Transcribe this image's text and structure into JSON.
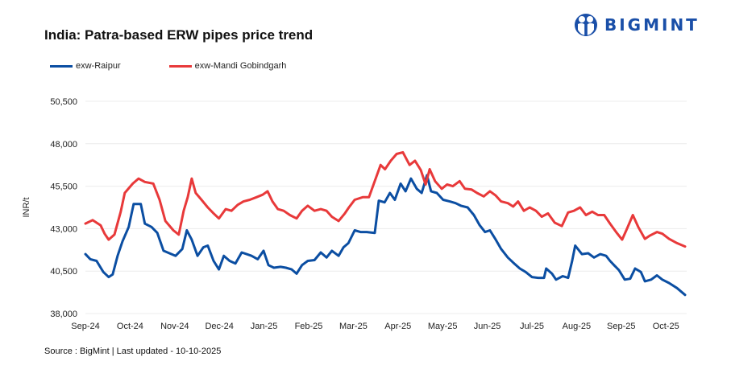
{
  "header": {
    "title": "India: Patra-based ERW pipes price trend",
    "brand": "BIGMINT",
    "brand_icon": "bigmint-logo-icon"
  },
  "footer": {
    "source": "Source : BigMint | Last updated - 10-10-2025"
  },
  "colors": {
    "raipur": "#0b4ea2",
    "mandi": "#e8393a",
    "brand": "#1a4fa8",
    "grid": "#ececec"
  },
  "chart_data": {
    "type": "line",
    "title": "India: Patra-based ERW pipes price trend",
    "xlabel": "",
    "ylabel": "INR/t",
    "ylim": [
      38000,
      50500
    ],
    "yticks": [
      38000,
      40500,
      43000,
      45500,
      48000,
      50500
    ],
    "ytick_labels": [
      "38,000",
      "40,500",
      "43,000",
      "45,500",
      "48,000",
      "50,500"
    ],
    "xlim_months": [
      0,
      13.45
    ],
    "xtick_labels": [
      "Sep-24",
      "Oct-24",
      "Nov-24",
      "Dec-24",
      "Jan-25",
      "Feb-25",
      "Mar-25",
      "Apr-25",
      "May-25",
      "Jun-25",
      "Jul-25",
      "Aug-25",
      "Sep-25",
      "Oct-25"
    ],
    "grid": true,
    "legend_position": "top-left",
    "x_unit": "months since start of Sep-24",
    "series": [
      {
        "name": "exw-Raipur",
        "color": "#0b4ea2",
        "points": [
          [
            0.0,
            41500
          ],
          [
            0.11,
            41200
          ],
          [
            0.25,
            41100
          ],
          [
            0.4,
            40450
          ],
          [
            0.52,
            40150
          ],
          [
            0.61,
            40300
          ],
          [
            0.72,
            41400
          ],
          [
            0.83,
            42250
          ],
          [
            0.97,
            43100
          ],
          [
            1.08,
            44450
          ],
          [
            1.24,
            44450
          ],
          [
            1.33,
            43300
          ],
          [
            1.48,
            43100
          ],
          [
            1.61,
            42750
          ],
          [
            1.75,
            41700
          ],
          [
            1.88,
            41550
          ],
          [
            2.02,
            41400
          ],
          [
            2.17,
            41800
          ],
          [
            2.27,
            42900
          ],
          [
            2.38,
            42350
          ],
          [
            2.51,
            41400
          ],
          [
            2.64,
            41900
          ],
          [
            2.74,
            42000
          ],
          [
            2.87,
            41100
          ],
          [
            2.99,
            40600
          ],
          [
            3.1,
            41400
          ],
          [
            3.23,
            41100
          ],
          [
            3.36,
            40950
          ],
          [
            3.5,
            41600
          ],
          [
            3.61,
            41500
          ],
          [
            3.72,
            41400
          ],
          [
            3.86,
            41200
          ],
          [
            3.99,
            41700
          ],
          [
            4.1,
            40850
          ],
          [
            4.22,
            40700
          ],
          [
            4.37,
            40750
          ],
          [
            4.49,
            40700
          ],
          [
            4.62,
            40600
          ],
          [
            4.73,
            40350
          ],
          [
            4.85,
            40850
          ],
          [
            4.98,
            41100
          ],
          [
            5.13,
            41150
          ],
          [
            5.27,
            41600
          ],
          [
            5.4,
            41300
          ],
          [
            5.52,
            41700
          ],
          [
            5.67,
            41400
          ],
          [
            5.78,
            41900
          ],
          [
            5.89,
            42150
          ],
          [
            6.03,
            42900
          ],
          [
            6.16,
            42800
          ],
          [
            6.3,
            42800
          ],
          [
            6.48,
            42750
          ],
          [
            6.57,
            44650
          ],
          [
            6.7,
            44550
          ],
          [
            6.82,
            45100
          ],
          [
            6.93,
            44700
          ],
          [
            7.06,
            45650
          ],
          [
            7.17,
            45200
          ],
          [
            7.29,
            45950
          ],
          [
            7.42,
            45350
          ],
          [
            7.53,
            45100
          ],
          [
            7.65,
            46150
          ],
          [
            7.74,
            45200
          ],
          [
            7.87,
            45100
          ],
          [
            8.01,
            44700
          ],
          [
            8.16,
            44600
          ],
          [
            8.29,
            44500
          ],
          [
            8.41,
            44350
          ],
          [
            8.56,
            44250
          ],
          [
            8.7,
            43800
          ],
          [
            8.83,
            43200
          ],
          [
            8.95,
            42800
          ],
          [
            9.06,
            42900
          ],
          [
            9.19,
            42350
          ],
          [
            9.31,
            41800
          ],
          [
            9.46,
            41300
          ],
          [
            9.58,
            41000
          ],
          [
            9.73,
            40650
          ],
          [
            9.86,
            40450
          ],
          [
            10.0,
            40150
          ],
          [
            10.14,
            40100
          ],
          [
            10.27,
            40100
          ],
          [
            10.32,
            40650
          ],
          [
            10.45,
            40350
          ],
          [
            10.54,
            40000
          ],
          [
            10.69,
            40200
          ],
          [
            10.81,
            40100
          ],
          [
            10.9,
            41100
          ],
          [
            10.97,
            42000
          ],
          [
            11.12,
            41500
          ],
          [
            11.26,
            41550
          ],
          [
            11.39,
            41300
          ],
          [
            11.53,
            41500
          ],
          [
            11.66,
            41400
          ],
          [
            11.75,
            41100
          ],
          [
            11.84,
            40850
          ],
          [
            11.95,
            40550
          ],
          [
            12.08,
            40000
          ],
          [
            12.2,
            40050
          ],
          [
            12.31,
            40650
          ],
          [
            12.44,
            40450
          ],
          [
            12.53,
            39900
          ],
          [
            12.67,
            40000
          ],
          [
            12.8,
            40250
          ],
          [
            12.92,
            40000
          ],
          [
            13.07,
            39800
          ],
          [
            13.25,
            39500
          ],
          [
            13.43,
            39100
          ]
        ]
      },
      {
        "name": "exw-Mandi Gobindgarh",
        "color": "#e8393a",
        "points": [
          [
            0.0,
            43300
          ],
          [
            0.16,
            43500
          ],
          [
            0.34,
            43200
          ],
          [
            0.43,
            42700
          ],
          [
            0.52,
            42350
          ],
          [
            0.65,
            42650
          ],
          [
            0.79,
            44000
          ],
          [
            0.88,
            45100
          ],
          [
            1.06,
            45650
          ],
          [
            1.19,
            45950
          ],
          [
            1.33,
            45750
          ],
          [
            1.52,
            45650
          ],
          [
            1.66,
            44700
          ],
          [
            1.79,
            43450
          ],
          [
            1.97,
            42900
          ],
          [
            2.09,
            42650
          ],
          [
            2.2,
            44050
          ],
          [
            2.29,
            44850
          ],
          [
            2.38,
            45950
          ],
          [
            2.47,
            45100
          ],
          [
            2.6,
            44700
          ],
          [
            2.74,
            44250
          ],
          [
            2.87,
            43900
          ],
          [
            2.99,
            43600
          ],
          [
            3.14,
            44150
          ],
          [
            3.27,
            44050
          ],
          [
            3.41,
            44400
          ],
          [
            3.54,
            44600
          ],
          [
            3.68,
            44700
          ],
          [
            3.83,
            44850
          ],
          [
            3.97,
            45000
          ],
          [
            4.08,
            45200
          ],
          [
            4.19,
            44600
          ],
          [
            4.31,
            44150
          ],
          [
            4.44,
            44050
          ],
          [
            4.58,
            43800
          ],
          [
            4.73,
            43600
          ],
          [
            4.85,
            44050
          ],
          [
            4.98,
            44350
          ],
          [
            5.13,
            44050
          ],
          [
            5.27,
            44150
          ],
          [
            5.4,
            44050
          ],
          [
            5.52,
            43700
          ],
          [
            5.67,
            43450
          ],
          [
            5.81,
            43900
          ],
          [
            5.9,
            44250
          ],
          [
            6.03,
            44700
          ],
          [
            6.21,
            44850
          ],
          [
            6.35,
            44850
          ],
          [
            6.48,
            45800
          ],
          [
            6.61,
            46750
          ],
          [
            6.71,
            46500
          ],
          [
            6.84,
            47000
          ],
          [
            6.97,
            47400
          ],
          [
            7.11,
            47500
          ],
          [
            7.26,
            46750
          ],
          [
            7.38,
            47000
          ],
          [
            7.51,
            46450
          ],
          [
            7.62,
            45600
          ],
          [
            7.71,
            46500
          ],
          [
            7.83,
            45800
          ],
          [
            7.98,
            45350
          ],
          [
            8.1,
            45600
          ],
          [
            8.23,
            45500
          ],
          [
            8.38,
            45800
          ],
          [
            8.5,
            45350
          ],
          [
            8.65,
            45300
          ],
          [
            8.77,
            45100
          ],
          [
            8.92,
            44900
          ],
          [
            9.06,
            45200
          ],
          [
            9.19,
            44950
          ],
          [
            9.31,
            44600
          ],
          [
            9.46,
            44500
          ],
          [
            9.58,
            44300
          ],
          [
            9.69,
            44600
          ],
          [
            9.82,
            44050
          ],
          [
            9.95,
            44250
          ],
          [
            10.09,
            44050
          ],
          [
            10.22,
            43700
          ],
          [
            10.36,
            43900
          ],
          [
            10.51,
            43350
          ],
          [
            10.67,
            43150
          ],
          [
            10.81,
            43950
          ],
          [
            10.94,
            44050
          ],
          [
            11.08,
            44250
          ],
          [
            11.21,
            43800
          ],
          [
            11.35,
            44000
          ],
          [
            11.48,
            43800
          ],
          [
            11.62,
            43800
          ],
          [
            11.75,
            43300
          ],
          [
            11.9,
            42750
          ],
          [
            12.02,
            42350
          ],
          [
            12.13,
            43000
          ],
          [
            12.26,
            43800
          ],
          [
            12.38,
            43100
          ],
          [
            12.53,
            42400
          ],
          [
            12.65,
            42600
          ],
          [
            12.8,
            42800
          ],
          [
            12.92,
            42700
          ],
          [
            13.07,
            42400
          ],
          [
            13.25,
            42150
          ],
          [
            13.43,
            41950
          ]
        ]
      }
    ]
  }
}
